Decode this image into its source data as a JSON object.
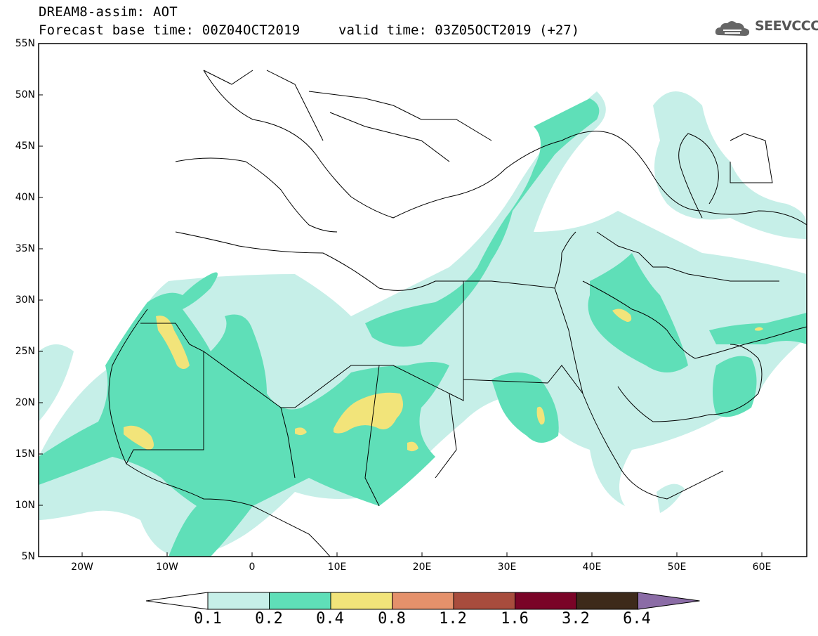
{
  "header": {
    "title": "DREAM8-assim: AOT",
    "base_time": "Forecast base time: 00Z04OCT2019",
    "valid_time": "valid time: 03Z05OCT2019 (+27)",
    "logo_text": "SEEVCCC"
  },
  "map": {
    "lat_labels": [
      "55N",
      "50N",
      "45N",
      "40N",
      "35N",
      "30N",
      "25N",
      "20N",
      "15N",
      "10N",
      "5N"
    ],
    "lon_labels": [
      "20W",
      "10W",
      "0",
      "10E",
      "20E",
      "30E",
      "40E",
      "50E",
      "60E"
    ],
    "extent": {
      "lon": [
        -25,
        65
      ],
      "lat": [
        5,
        55
      ]
    }
  },
  "colorbar": {
    "labels": [
      "0.1",
      "0.2",
      "0.4",
      "0.8",
      "1.2",
      "1.6",
      "3.2",
      "6.4"
    ],
    "colors": [
      "#ffffff",
      "#c6efe8",
      "#5fdfb8",
      "#f2e47a",
      "#e5916b",
      "#a84c3d",
      "#7a0427",
      "#3d2a1a",
      "#8b6ca6"
    ]
  }
}
